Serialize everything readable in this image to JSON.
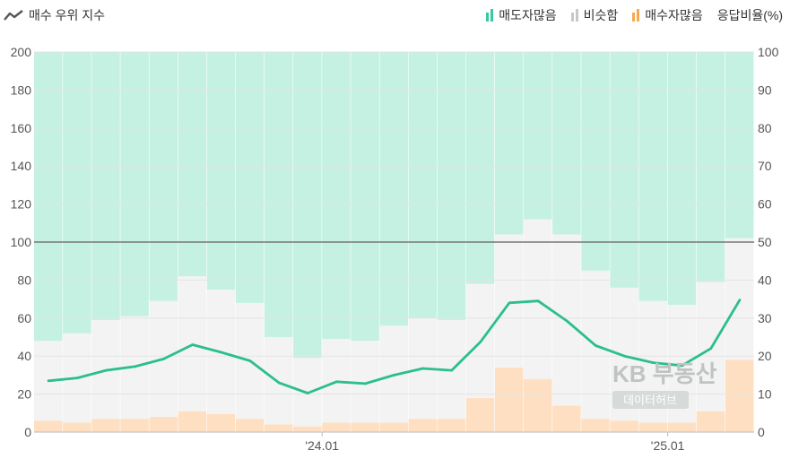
{
  "legend": {
    "title": "매수 우위 지수",
    "title_icon": "trend-line-icon",
    "items": [
      {
        "label": "매도자많음",
        "color": "#39c9a0",
        "icon": "bar-icon"
      },
      {
        "label": "비슷함",
        "color": "#c8c8c8",
        "icon": "bar-icon"
      },
      {
        "label": "매수자많음",
        "color": "#f6a94c",
        "icon": "bar-icon"
      }
    ],
    "right_axis_label": "응답비율(%)"
  },
  "watermark": {
    "line1": "KB 부동산",
    "line2": "데이터허브"
  },
  "chart_data": {
    "type": "bar",
    "title": "매수 우위 지수",
    "x_tick_labels": [
      "'24.01",
      "'25.01"
    ],
    "x_tick_after_index": [
      9,
      21
    ],
    "y_left": {
      "ticks": [
        0,
        20,
        40,
        60,
        80,
        100,
        120,
        140,
        160,
        180,
        200
      ],
      "range": [
        0,
        200
      ]
    },
    "y_right": {
      "label": "응답비율(%)",
      "ticks": [
        0,
        10,
        20,
        30,
        40,
        50,
        60,
        70,
        80,
        90,
        100
      ],
      "range": [
        0,
        100
      ]
    },
    "reference_line": 100,
    "stacked_series_percent": [
      {
        "name": "매수자많음",
        "color": "#ffdfc2",
        "values": [
          3,
          2.5,
          3.5,
          3.5,
          4,
          5.5,
          4.8,
          3.5,
          2,
          1.5,
          2.5,
          2.5,
          2.5,
          3.5,
          3.5,
          9,
          17,
          14,
          7,
          3.5,
          3,
          2.5,
          2.5,
          5.5,
          19
        ]
      },
      {
        "name": "비슷함",
        "color": "#f3f3f3",
        "values": [
          21,
          23.5,
          26,
          27,
          30.5,
          35.5,
          32.7,
          30.5,
          23,
          18,
          22,
          21.5,
          25.5,
          26.5,
          26,
          30,
          35,
          42,
          45,
          39,
          35,
          32,
          31,
          34,
          32
        ]
      },
      {
        "name": "매도자많음",
        "color": "#c4f1e2",
        "values": [
          76,
          74,
          70.5,
          69.5,
          65.5,
          59,
          62.5,
          66,
          75,
          80.5,
          75.5,
          76,
          72,
          70,
          70.5,
          61,
          48,
          44,
          48,
          57.5,
          62,
          65.5,
          66.5,
          60.5,
          49
        ]
      }
    ],
    "series": [
      {
        "name": "매수 우위 지수",
        "color": "#2bbf8a",
        "values": [
          27,
          28.5,
          32.5,
          34.5,
          38.5,
          46,
          42,
          37.5,
          26,
          20.5,
          26.5,
          25.5,
          30,
          33.5,
          32.5,
          47.5,
          68,
          69,
          58.5,
          45.5,
          40,
          36.5,
          35,
          44,
          69.5
        ]
      }
    ]
  }
}
